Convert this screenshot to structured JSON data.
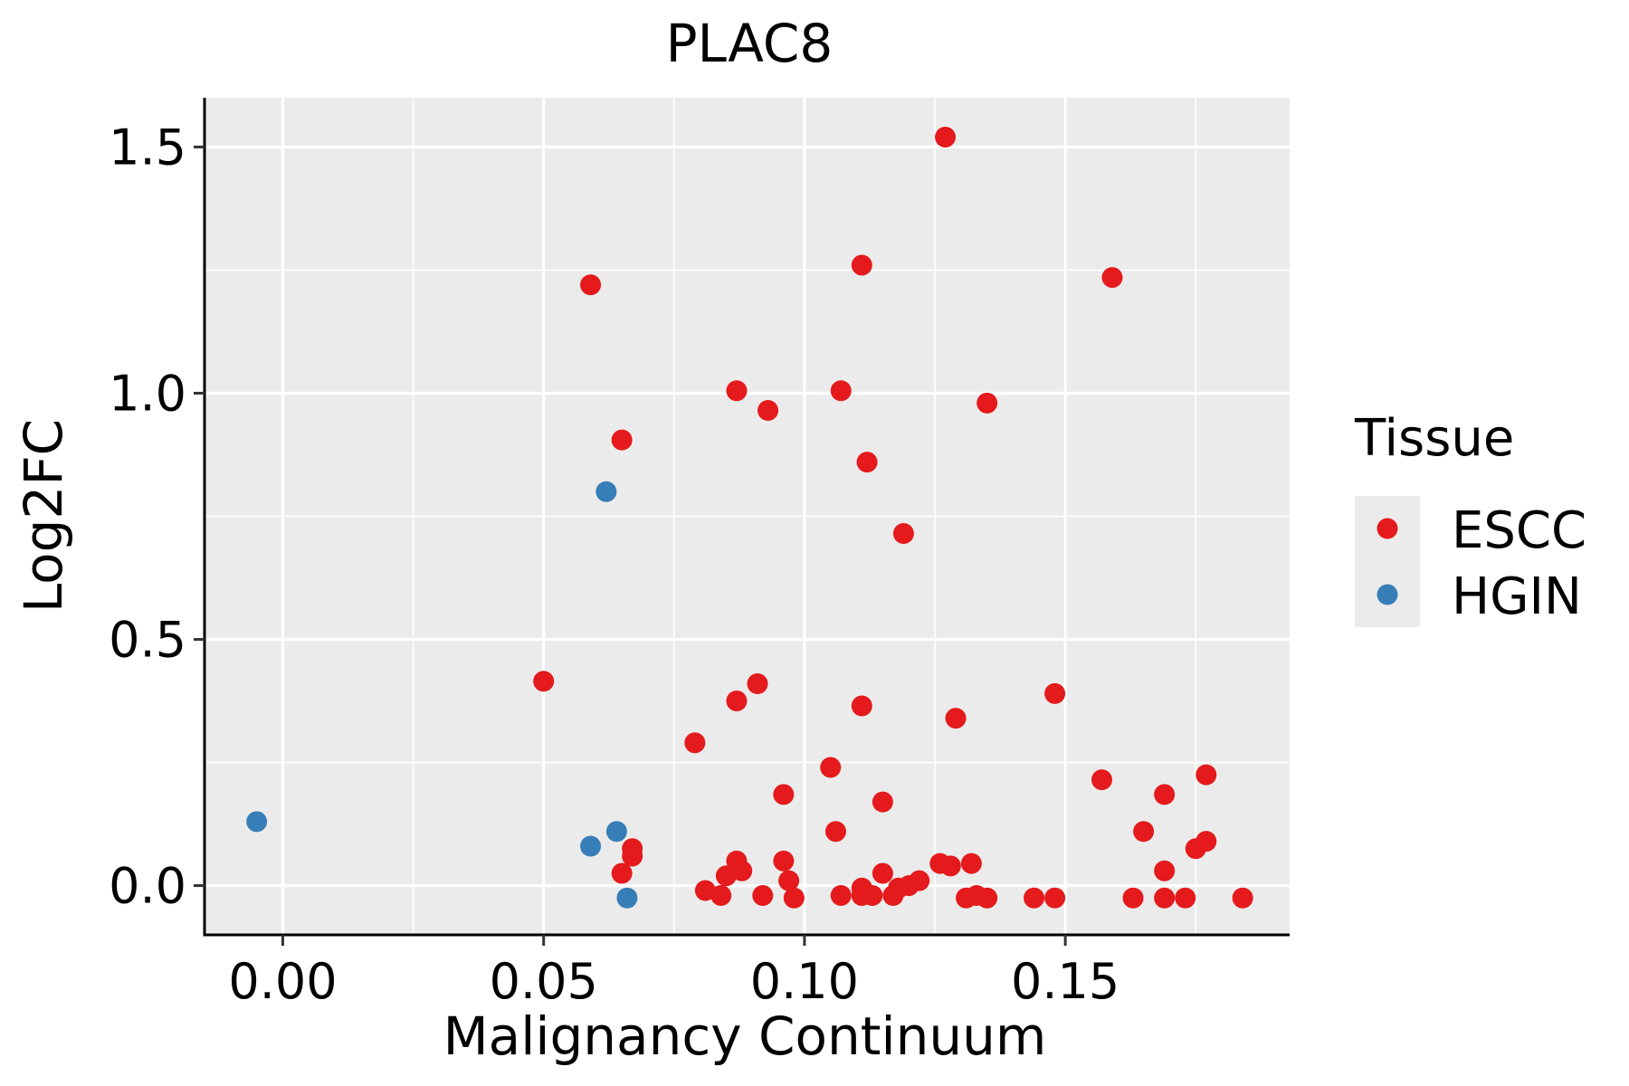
{
  "chart_data": {
    "type": "scatter",
    "title": "PLAC8",
    "xlabel": "Malignancy Continuum",
    "ylabel": "Log2FC",
    "xlim": [
      -0.015,
      0.193
    ],
    "ylim": [
      -0.1,
      1.6
    ],
    "x_ticks": [
      0.0,
      0.05,
      0.1,
      0.15
    ],
    "x_tick_labels": [
      "0.00",
      "0.05",
      "0.10",
      "0.15"
    ],
    "y_ticks": [
      0.0,
      0.5,
      1.0,
      1.5
    ],
    "y_tick_labels": [
      "0.0",
      "0.5",
      "1.0",
      "1.5"
    ],
    "grid": true,
    "legend_position": "right",
    "legend": {
      "title": "Tissue",
      "items": [
        {
          "label": "ESCC",
          "color": "#e41a1c"
        },
        {
          "label": "HGIN",
          "color": "#377eb8"
        }
      ]
    },
    "series": [
      {
        "name": "ESCC",
        "color": "#e41a1c",
        "points": [
          [
            0.127,
            1.52
          ],
          [
            0.059,
            1.22
          ],
          [
            0.111,
            1.26
          ],
          [
            0.159,
            1.235
          ],
          [
            0.087,
            1.005
          ],
          [
            0.107,
            1.005
          ],
          [
            0.093,
            0.965
          ],
          [
            0.135,
            0.98
          ],
          [
            0.065,
            0.905
          ],
          [
            0.112,
            0.86
          ],
          [
            0.119,
            0.715
          ],
          [
            0.05,
            0.415
          ],
          [
            0.091,
            0.41
          ],
          [
            0.148,
            0.39
          ],
          [
            0.087,
            0.375
          ],
          [
            0.111,
            0.365
          ],
          [
            0.129,
            0.34
          ],
          [
            0.079,
            0.29
          ],
          [
            0.105,
            0.24
          ],
          [
            0.157,
            0.215
          ],
          [
            0.177,
            0.225
          ],
          [
            0.096,
            0.185
          ],
          [
            0.169,
            0.185
          ],
          [
            0.115,
            0.17
          ],
          [
            0.106,
            0.11
          ],
          [
            0.165,
            0.11
          ],
          [
            0.177,
            0.09
          ],
          [
            0.175,
            0.075
          ],
          [
            0.067,
            0.075
          ],
          [
            0.067,
            0.06
          ],
          [
            0.087,
            0.05
          ],
          [
            0.096,
            0.05
          ],
          [
            0.126,
            0.045
          ],
          [
            0.128,
            0.04
          ],
          [
            0.132,
            0.045
          ],
          [
            0.115,
            0.025
          ],
          [
            0.065,
            0.025
          ],
          [
            0.088,
            0.03
          ],
          [
            0.085,
            0.02
          ],
          [
            0.097,
            0.01
          ],
          [
            0.122,
            0.01
          ],
          [
            0.169,
            0.03
          ],
          [
            0.081,
            -0.01
          ],
          [
            0.111,
            -0.005
          ],
          [
            0.118,
            -0.005
          ],
          [
            0.12,
            0.0
          ],
          [
            0.084,
            -0.02
          ],
          [
            0.092,
            -0.02
          ],
          [
            0.098,
            -0.025
          ],
          [
            0.107,
            -0.02
          ],
          [
            0.111,
            -0.02
          ],
          [
            0.113,
            -0.02
          ],
          [
            0.117,
            -0.02
          ],
          [
            0.131,
            -0.025
          ],
          [
            0.133,
            -0.02
          ],
          [
            0.135,
            -0.025
          ],
          [
            0.144,
            -0.025
          ],
          [
            0.148,
            -0.025
          ],
          [
            0.163,
            -0.025
          ],
          [
            0.169,
            -0.025
          ],
          [
            0.173,
            -0.025
          ],
          [
            0.184,
            -0.025
          ]
        ]
      },
      {
        "name": "HGIN",
        "color": "#377eb8",
        "points": [
          [
            0.062,
            0.8
          ],
          [
            -0.005,
            0.13
          ],
          [
            0.064,
            0.11
          ],
          [
            0.059,
            0.08
          ],
          [
            0.066,
            -0.025
          ]
        ]
      }
    ]
  }
}
